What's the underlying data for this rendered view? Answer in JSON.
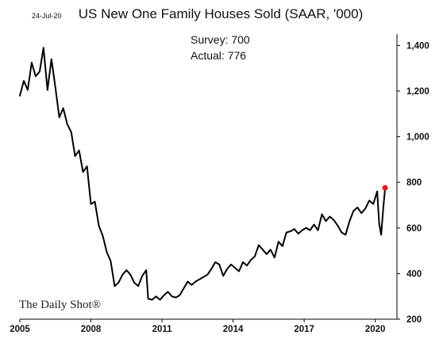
{
  "header": {
    "date": "24-Jul-20",
    "title": "US New One Family Houses Sold (SAAR, '000)"
  },
  "annotation": {
    "survey": "Survey: 700",
    "actual": "Actual:  776"
  },
  "watermark": "The Daily Shot®",
  "colors": {
    "line": "#000000",
    "last_point": "#e31a1c",
    "background": "#ffffff"
  },
  "chart_data": {
    "type": "line",
    "title": "US New One Family Houses Sold (SAAR, '000)",
    "xlabel": "",
    "ylabel": "",
    "x_ticks": [
      "2005",
      "2008",
      "2011",
      "2014",
      "2017",
      "2020"
    ],
    "y_ticks": [
      "200",
      "400",
      "600",
      "800",
      "1,000",
      "1,200",
      "1,400"
    ],
    "xlim": [
      "2005-01",
      "2020-12"
    ],
    "ylim": [
      200,
      1450
    ],
    "y_axis_side": "right",
    "grid": false,
    "legend": "none",
    "highlight_last_point": true,
    "series": [
      {
        "values": [
          [
            "2005-01",
            1180
          ],
          [
            "2005-03",
            1245
          ],
          [
            "2005-05",
            1205
          ],
          [
            "2005-07",
            1325
          ],
          [
            "2005-09",
            1265
          ],
          [
            "2005-11",
            1285
          ],
          [
            "2006-01",
            1390
          ],
          [
            "2006-03",
            1205
          ],
          [
            "2006-05",
            1340
          ],
          [
            "2006-07",
            1215
          ],
          [
            "2006-09",
            1085
          ],
          [
            "2006-11",
            1125
          ],
          [
            "2007-01",
            1055
          ],
          [
            "2007-03",
            1020
          ],
          [
            "2007-05",
            915
          ],
          [
            "2007-07",
            940
          ],
          [
            "2007-09",
            845
          ],
          [
            "2007-11",
            870
          ],
          [
            "2008-01",
            705
          ],
          [
            "2008-03",
            715
          ],
          [
            "2008-05",
            610
          ],
          [
            "2008-07",
            565
          ],
          [
            "2008-09",
            495
          ],
          [
            "2008-11",
            455
          ],
          [
            "2009-01",
            345
          ],
          [
            "2009-03",
            360
          ],
          [
            "2009-05",
            395
          ],
          [
            "2009-07",
            415
          ],
          [
            "2009-09",
            395
          ],
          [
            "2009-11",
            360
          ],
          [
            "2010-01",
            345
          ],
          [
            "2010-03",
            390
          ],
          [
            "2010-05",
            415
          ],
          [
            "2010-06",
            290
          ],
          [
            "2010-08",
            285
          ],
          [
            "2010-10",
            300
          ],
          [
            "2010-12",
            285
          ],
          [
            "2011-02",
            305
          ],
          [
            "2011-04",
            320
          ],
          [
            "2011-06",
            300
          ],
          [
            "2011-08",
            295
          ],
          [
            "2011-10",
            305
          ],
          [
            "2011-12",
            335
          ],
          [
            "2012-02",
            365
          ],
          [
            "2012-04",
            350
          ],
          [
            "2012-06",
            365
          ],
          [
            "2012-08",
            375
          ],
          [
            "2012-10",
            385
          ],
          [
            "2012-12",
            395
          ],
          [
            "2013-02",
            420
          ],
          [
            "2013-04",
            450
          ],
          [
            "2013-06",
            440
          ],
          [
            "2013-08",
            390
          ],
          [
            "2013-10",
            420
          ],
          [
            "2013-12",
            440
          ],
          [
            "2014-02",
            425
          ],
          [
            "2014-04",
            410
          ],
          [
            "2014-06",
            450
          ],
          [
            "2014-08",
            435
          ],
          [
            "2014-10",
            460
          ],
          [
            "2014-12",
            475
          ],
          [
            "2015-02",
            525
          ],
          [
            "2015-04",
            505
          ],
          [
            "2015-06",
            485
          ],
          [
            "2015-08",
            505
          ],
          [
            "2015-10",
            470
          ],
          [
            "2015-12",
            540
          ],
          [
            "2016-02",
            520
          ],
          [
            "2016-04",
            580
          ],
          [
            "2016-06",
            585
          ],
          [
            "2016-08",
            595
          ],
          [
            "2016-10",
            575
          ],
          [
            "2016-12",
            590
          ],
          [
            "2017-02",
            600
          ],
          [
            "2017-04",
            590
          ],
          [
            "2017-06",
            615
          ],
          [
            "2017-08",
            590
          ],
          [
            "2017-10",
            660
          ],
          [
            "2017-12",
            630
          ],
          [
            "2018-02",
            650
          ],
          [
            "2018-04",
            635
          ],
          [
            "2018-06",
            610
          ],
          [
            "2018-08",
            580
          ],
          [
            "2018-10",
            570
          ],
          [
            "2018-12",
            630
          ],
          [
            "2019-02",
            675
          ],
          [
            "2019-04",
            690
          ],
          [
            "2019-06",
            665
          ],
          [
            "2019-08",
            685
          ],
          [
            "2019-10",
            720
          ],
          [
            "2019-12",
            705
          ],
          [
            "2020-02",
            760
          ],
          [
            "2020-03",
            620
          ],
          [
            "2020-04",
            570
          ],
          [
            "2020-05",
            680
          ],
          [
            "2020-06",
            776
          ]
        ]
      }
    ]
  }
}
